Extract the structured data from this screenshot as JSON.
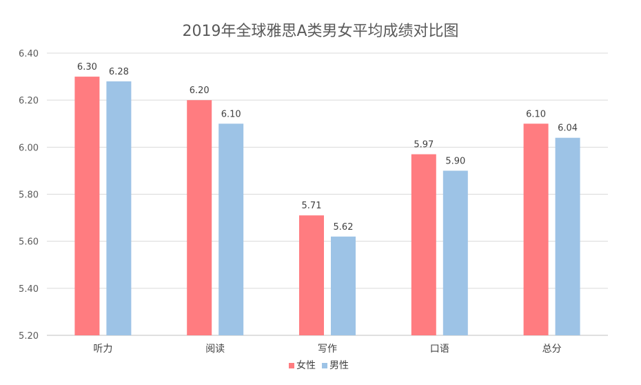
{
  "chart_data": {
    "type": "bar",
    "title": "2019年全球雅思A类男女平均成绩对比图",
    "categories": [
      "听力",
      "阅读",
      "写作",
      "口语",
      "总分"
    ],
    "series": [
      {
        "name": "女性",
        "values": [
          6.3,
          6.2,
          5.71,
          5.97,
          6.1
        ],
        "color": "#FF7C80"
      },
      {
        "name": "男性",
        "values": [
          6.28,
          6.1,
          5.62,
          5.9,
          6.04
        ],
        "color": "#9DC3E6"
      }
    ],
    "ylim": [
      5.2,
      6.4
    ],
    "yticks": [
      "5.20",
      "5.40",
      "5.60",
      "5.80",
      "6.00",
      "6.20",
      "6.40"
    ],
    "grid": true,
    "legend_position": "bottom",
    "xlabel": "",
    "ylabel": ""
  }
}
